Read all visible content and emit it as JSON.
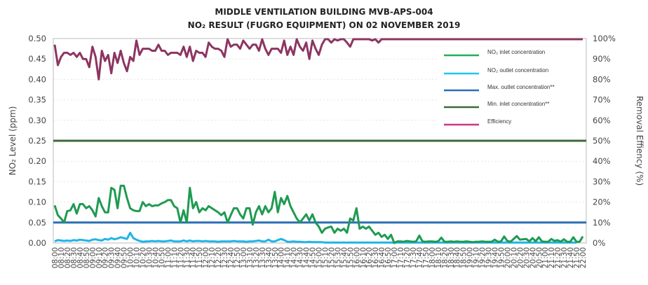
{
  "chart_data": {
    "type": "line",
    "title": "MIDDLE VENTILATION BUILDING MVB-APS-004",
    "subtitle": "NO₂ RESULT (FUGRO EQUIPMENT) ON 02 NOVEMBER 2019",
    "ylabel": "NO₂ Level (ppm)",
    "y2label": "Removal Effiency (%)",
    "ylim": [
      0,
      0.5
    ],
    "y2lim": [
      0,
      100
    ],
    "yticks": [
      "0.00",
      "0.05",
      "0.10",
      "0.15",
      "0.20",
      "0.25",
      "0.30",
      "0.35",
      "0.40",
      "0.45",
      "0.50"
    ],
    "y2ticks": [
      "0%",
      "10%",
      "20%",
      "30%",
      "40%",
      "50%",
      "60%",
      "70%",
      "80%",
      "90%",
      "100%"
    ],
    "xticks": [
      "08:00",
      "08:10",
      "08:20",
      "08:30",
      "08:40",
      "08:50",
      "09:00",
      "09:10",
      "09:20",
      "09:30",
      "09:40",
      "09:50",
      "10:00",
      "10:10",
      "10:20",
      "10:30",
      "10:40",
      "10:50",
      "11:00",
      "11:10",
      "11:20",
      "11:30",
      "11:40",
      "11:50",
      "12:00",
      "12:10",
      "12:20",
      "12:30",
      "12:40",
      "12:50",
      "13:00",
      "13:10",
      "13:20",
      "13:30",
      "13:40",
      "13:50",
      "14:00",
      "14:10",
      "14:20",
      "14:30",
      "14:40",
      "14:50",
      "15:00",
      "15:10",
      "15:20",
      "15:30",
      "15:40",
      "15:50",
      "16:00",
      "16:10",
      "16:20",
      "16:30",
      "16:40",
      "16:50",
      "17:00",
      "17:10",
      "17:20",
      "17:30",
      "17:40",
      "17:50",
      "18:00",
      "18:10",
      "18:20",
      "18:30",
      "18:40",
      "18:50",
      "19:00",
      "19:10",
      "19:20",
      "19:30",
      "19:40",
      "19:50",
      "20:00",
      "20:10",
      "20:20",
      "20:30",
      "20:40",
      "20:50",
      "21:00",
      "21:10",
      "21:20",
      "21:30",
      "21:40",
      "21:50",
      "22:00"
    ],
    "x_start": "08:00",
    "x_step_minutes": 5,
    "grid": true,
    "legend_position": "top-right",
    "series": [
      {
        "name": "NO₂ inlet concentration",
        "axis": "left",
        "color": "#1f9a52",
        "values": [
          0.092,
          0.068,
          0.06,
          0.05,
          0.078,
          0.08,
          0.095,
          0.072,
          0.095,
          0.095,
          0.085,
          0.09,
          0.08,
          0.065,
          0.11,
          0.09,
          0.075,
          0.075,
          0.135,
          0.13,
          0.085,
          0.14,
          0.14,
          0.11,
          0.085,
          0.08,
          0.078,
          0.078,
          0.1,
          0.09,
          0.095,
          0.09,
          0.092,
          0.092,
          0.097,
          0.1,
          0.105,
          0.105,
          0.09,
          0.085,
          0.05,
          0.08,
          0.05,
          0.135,
          0.085,
          0.1,
          0.075,
          0.085,
          0.08,
          0.09,
          0.085,
          0.08,
          0.075,
          0.068,
          0.075,
          0.05,
          0.068,
          0.085,
          0.085,
          0.07,
          0.06,
          0.085,
          0.085,
          0.045,
          0.075,
          0.09,
          0.07,
          0.09,
          0.075,
          0.085,
          0.125,
          0.075,
          0.11,
          0.095,
          0.115,
          0.09,
          0.075,
          0.06,
          0.05,
          0.06,
          0.07,
          0.055,
          0.07,
          0.05,
          0.04,
          0.025,
          0.035,
          0.038,
          0.04,
          0.025,
          0.035,
          0.03,
          0.035,
          0.025,
          0.06,
          0.055,
          0.085,
          0.035,
          0.04,
          0.035,
          0.04,
          0.03,
          0.02,
          0.025,
          0.015,
          0.02,
          0.01,
          0.02,
          0.0,
          0.004,
          0.004,
          0.003,
          0.005,
          0.004,
          0.003,
          0.004,
          0.018,
          0.004,
          0.003,
          0.004,
          0.004,
          0.003,
          0.004,
          0.013,
          0.003,
          0.003,
          0.004,
          0.003,
          0.004,
          0.003,
          0.003,
          0.004,
          0.003,
          0.002,
          0.003,
          0.003,
          0.004,
          0.003,
          0.003,
          0.003,
          0.008,
          0.003,
          0.004,
          0.016,
          0.005,
          0.003,
          0.01,
          0.017,
          0.008,
          0.009,
          0.01,
          0.004,
          0.012,
          0.004,
          0.014,
          0.004,
          0.003,
          0.003,
          0.01,
          0.005,
          0.007,
          0.003,
          0.009,
          0.003,
          0.003,
          0.014,
          0.003,
          0.003,
          0.016
        ]
      },
      {
        "name": "NO₂ outlet concentration",
        "axis": "left",
        "color": "#22b4e6",
        "values": [
          0.004,
          0.007,
          0.006,
          0.005,
          0.006,
          0.005,
          0.007,
          0.006,
          0.008,
          0.007,
          0.006,
          0.005,
          0.008,
          0.009,
          0.007,
          0.006,
          0.01,
          0.008,
          0.012,
          0.009,
          0.011,
          0.014,
          0.012,
          0.01,
          0.025,
          0.012,
          0.008,
          0.005,
          0.003,
          0.004,
          0.004,
          0.005,
          0.004,
          0.005,
          0.004,
          0.004,
          0.005,
          0.006,
          0.004,
          0.004,
          0.004,
          0.006,
          0.004,
          0.006,
          0.004,
          0.005,
          0.005,
          0.004,
          0.005,
          0.004,
          0.004,
          0.004,
          0.003,
          0.004,
          0.004,
          0.004,
          0.004,
          0.005,
          0.004,
          0.004,
          0.004,
          0.003,
          0.004,
          0.004,
          0.005,
          0.006,
          0.004,
          0.004,
          0.008,
          0.004,
          0.004,
          0.007,
          0.01,
          0.007,
          0.003,
          0.003,
          0.004,
          0.003,
          0.003,
          0.002,
          0.002,
          0.003,
          0.002,
          0.002,
          0.002,
          0.002,
          0.001,
          0.001,
          0.001,
          0.001,
          0.001,
          0.001,
          0.001,
          0.001,
          0.001,
          0.001,
          0.001,
          0.001,
          0.001,
          0.001,
          0.001,
          0.001,
          0.001,
          0.001,
          0.001,
          0.001,
          0.001,
          0.001,
          0.001,
          0.001,
          0.001,
          0.001,
          0.001,
          0.001,
          0.001,
          0.001,
          0.001,
          0.001,
          0.001,
          0.001,
          0.001,
          0.001,
          0.001,
          0.001,
          0.001,
          0.001,
          0.001,
          0.001,
          0.001,
          0.001,
          0.001,
          0.001,
          0.001,
          0.001,
          0.001,
          0.001,
          0.001,
          0.001,
          0.001,
          0.001,
          0.001,
          0.001,
          0.001,
          0.001,
          0.001,
          0.001,
          0.001,
          0.001,
          0.001,
          0.001,
          0.001,
          0.001,
          0.001,
          0.001,
          0.001,
          0.001,
          0.001,
          0.001,
          0.001,
          0.001,
          0.001,
          0.001,
          0.001,
          0.001,
          0.001,
          0.001,
          0.001
        ]
      },
      {
        "name": "Max. outlet concentration**",
        "axis": "left",
        "color": "#2b6fb5",
        "constant": 0.05
      },
      {
        "name": "Min. inlet concentration**",
        "axis": "left",
        "color": "#3d6a3a",
        "constant": 0.25
      },
      {
        "name": "Efficiency",
        "axis": "right",
        "color": "#8c3561",
        "values": [
          97,
          87,
          91,
          93,
          93,
          92,
          93,
          91,
          93,
          90,
          90,
          86,
          96,
          91,
          80,
          94,
          89,
          92,
          83,
          93,
          88,
          94,
          88,
          84,
          91,
          89,
          99,
          92,
          95,
          95,
          95,
          94,
          94,
          97,
          94,
          94,
          92,
          93,
          93,
          93,
          92,
          96,
          91,
          96,
          89,
          94,
          93,
          93,
          91,
          98,
          96,
          95,
          95,
          94,
          91,
          100,
          96,
          97,
          97,
          95,
          99,
          97,
          95,
          97,
          97,
          94,
          100,
          95,
          92,
          95,
          95,
          95,
          93,
          99,
          92,
          96,
          92,
          100,
          96,
          94,
          98,
          90,
          99,
          95,
          92,
          97,
          100,
          100,
          98,
          100,
          99,
          100,
          100,
          98,
          96,
          100,
          100,
          100,
          100,
          100,
          100,
          99,
          100,
          98,
          100,
          100,
          100,
          100,
          100,
          100,
          100,
          100,
          100,
          100,
          100,
          100,
          100,
          100,
          100,
          100,
          100,
          100,
          100,
          100,
          100,
          100,
          100,
          100,
          100,
          100,
          100,
          100,
          100,
          100,
          100,
          100,
          100,
          100,
          100,
          100,
          100,
          100,
          100,
          100,
          100,
          100,
          100,
          100,
          100,
          100,
          100,
          100,
          100,
          100,
          100,
          100,
          100,
          100,
          100,
          100,
          100,
          100,
          100,
          100,
          100,
          100,
          100,
          100,
          100
        ]
      }
    ]
  }
}
